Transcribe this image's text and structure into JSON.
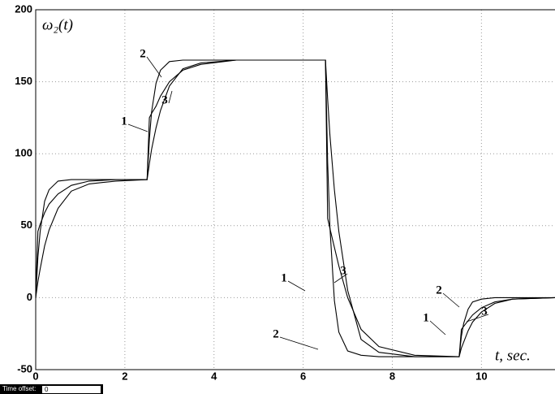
{
  "chart_data": {
    "type": "line",
    "y_label": "ω₂(t)",
    "x_label": "t, sec.",
    "x": [
      0,
      0.05,
      0.1,
      0.2,
      0.3,
      0.5,
      0.8,
      1.2,
      1.8,
      2.5,
      2.55,
      2.6,
      2.7,
      2.8,
      3.0,
      3.3,
      3.7,
      4.5,
      5.5,
      6.5,
      6.55,
      6.6,
      6.7,
      6.8,
      7.0,
      7.3,
      7.7,
      8.5,
      9.5,
      9.55,
      9.6,
      9.7,
      9.8,
      10.0,
      10.3,
      10.7,
      11.65
    ],
    "series": [
      {
        "name": "1",
        "color": "#000000",
        "values": [
          0,
          46,
          51,
          59,
          65,
          72,
          78,
          81,
          82,
          82,
          125,
          128,
          133,
          140,
          150,
          158,
          162,
          165,
          165,
          165,
          55,
          48,
          35,
          22,
          0,
          -22,
          -34,
          -40,
          -41,
          -22,
          -20,
          -16,
          -12,
          -7,
          -3,
          -1,
          0
        ]
      },
      {
        "name": "2",
        "color": "#000000",
        "values": [
          0,
          28,
          46,
          67,
          75,
          81,
          82,
          82,
          82,
          82,
          110,
          129,
          149,
          158,
          164,
          165,
          165,
          165,
          165,
          165,
          94,
          49,
          -2,
          -24,
          -37,
          -40,
          -41,
          -41,
          -41,
          -27,
          -18,
          -8,
          -3,
          -1,
          0,
          0,
          0
        ]
      },
      {
        "name": "3",
        "color": "#000000",
        "values": [
          0,
          11,
          20,
          36,
          47,
          62,
          74,
          79,
          81,
          82,
          93,
          103,
          118,
          130,
          147,
          159,
          163,
          165,
          165,
          165,
          138,
          113,
          75,
          46,
          5,
          -29,
          -38,
          -41,
          -41,
          -35,
          -31,
          -23,
          -17,
          -10,
          -4,
          -1,
          0
        ]
      }
    ],
    "annotations": [
      "2",
      "3",
      "1",
      "1",
      "3",
      "2",
      "1",
      "2",
      "3"
    ],
    "xlim": [
      0,
      11.65
    ],
    "xticks": [
      0,
      2,
      4,
      6,
      8,
      10
    ],
    "ylim": [
      -50,
      200
    ],
    "yticks": [
      -50,
      0,
      50,
      100,
      150,
      200
    ],
    "grid": true,
    "footer_label": "Time offset:",
    "footer_value": "0"
  }
}
